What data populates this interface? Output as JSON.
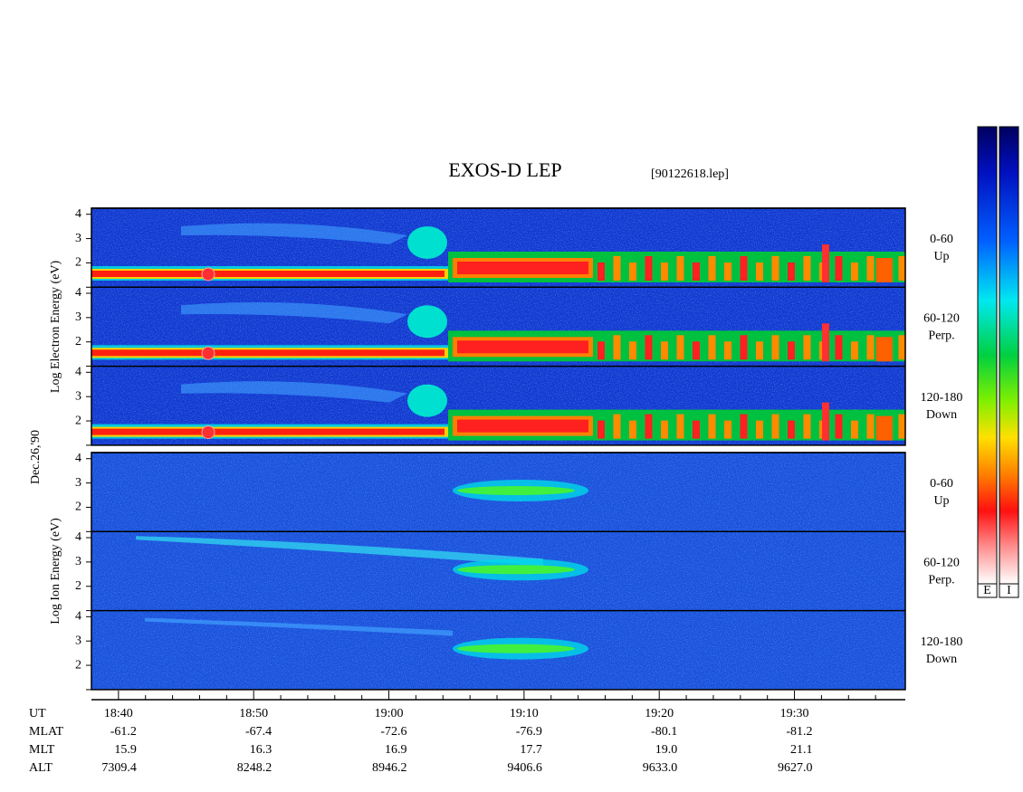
{
  "chart_data": {
    "type": "spectrogram",
    "title": "EXOS-D LEP",
    "file": "[90122618.lep]",
    "date": "Dec.26,'90",
    "groups": [
      {
        "ylabel": "Log Electron Energy (eV)",
        "panels": [
          {
            "label": "0-60",
            "sublabel": "Up"
          },
          {
            "label": "60-120",
            "sublabel": "Perp."
          },
          {
            "label": "120-180",
            "sublabel": "Down"
          }
        ]
      },
      {
        "ylabel": "Log Ion Energy (eV)",
        "panels": [
          {
            "label": "0-60",
            "sublabel": "Up"
          },
          {
            "label": "60-120",
            "sublabel": "Perp."
          },
          {
            "label": "120-180",
            "sublabel": "Down"
          }
        ]
      }
    ],
    "ylim": [
      1,
      4.25
    ],
    "yticks": [
      1,
      2,
      3,
      4
    ],
    "xlim": [
      1118,
      1178.2
    ],
    "xticks": [
      {
        "value": 1120,
        "label": "18:40"
      },
      {
        "value": 1130,
        "label": "18:50"
      },
      {
        "value": 1140,
        "label": "19:00"
      },
      {
        "value": 1150,
        "label": "19:10"
      },
      {
        "value": 1160,
        "label": "19:20"
      },
      {
        "value": 1170,
        "label": "19:30"
      }
    ],
    "xminor": [
      1122,
      1124,
      1126,
      1128,
      1132,
      1134,
      1136,
      1138,
      1142,
      1144,
      1146,
      1148,
      1152,
      1154,
      1156,
      1158,
      1162,
      1164,
      1166,
      1168,
      1172,
      1174,
      1176
    ],
    "ephemeris": [
      {
        "name": "MLAT",
        "values": [
          "-61.2",
          "-67.4",
          "-72.6",
          "-76.9",
          "-80.1",
          "-81.2"
        ]
      },
      {
        "name": "MLT",
        "values": [
          "15.9",
          "16.3",
          "16.9",
          "17.7",
          "19.0",
          "21.1"
        ]
      },
      {
        "name": "ALT",
        "values": [
          "7309.4",
          "8248.2",
          "8946.2",
          "9406.6",
          "9633.0",
          "9627.0"
        ]
      }
    ],
    "xname": "UT",
    "colorbars": [
      "E",
      "I"
    ]
  }
}
